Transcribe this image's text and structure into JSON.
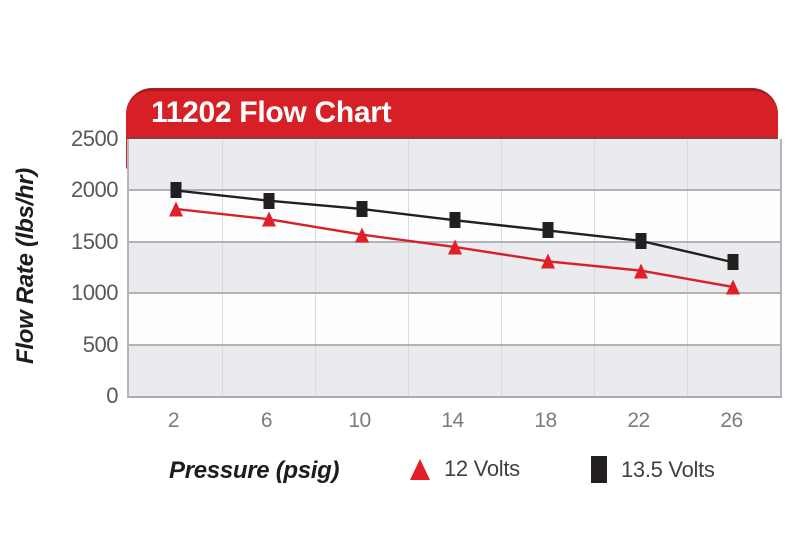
{
  "title": "11202 Flow Chart",
  "chart_data": {
    "type": "line",
    "title": "11202 Flow Chart",
    "xlabel": "Pressure (psig)",
    "ylabel": "Flow Rate (lbs/hr)",
    "categories": [
      2,
      6,
      10,
      14,
      18,
      22,
      26
    ],
    "series": [
      {
        "name": "12 Volts",
        "marker": "triangle",
        "color": "#e21e26",
        "line_color": "#d6212a",
        "values": [
          1820,
          1720,
          1570,
          1450,
          1310,
          1220,
          1060
        ]
      },
      {
        "name": "13.5 Volts",
        "marker": "square",
        "color": "#231f20",
        "line_color": "#231f20",
        "values": [
          2000,
          1900,
          1820,
          1710,
          1610,
          1510,
          1300
        ]
      }
    ],
    "ylim": [
      0,
      2500
    ],
    "y_ticks": [
      2500,
      2000,
      1500,
      1000,
      500,
      0
    ],
    "grid": "horizontal gridlines every 500; faint vertical gridlines at category boundaries; alternating gray/white bands every 500",
    "band_colors": [
      "#e9ebee",
      "#fdfdfe"
    ],
    "legend_position": "bottom"
  },
  "legend": {
    "items": [
      {
        "label": "12 Volts",
        "marker": "red-triangle"
      },
      {
        "label": "13.5 Volts",
        "marker": "black-square"
      }
    ]
  },
  "colors": {
    "banner_red": "#d71f26",
    "banner_top_edge": "#a81c20",
    "banner_bottom_edge": "#8d3a3c",
    "band_gray": "#e9ebee",
    "major_gridline": "#b1b3b6",
    "minor_gridline": "#d8dadc",
    "axis_border": "#a8aaad",
    "y_tick_text": "#59595c",
    "x_tick_text": "#7b7c7e",
    "series_12v": "#e21e26",
    "series_13_5v": "#231f20"
  }
}
